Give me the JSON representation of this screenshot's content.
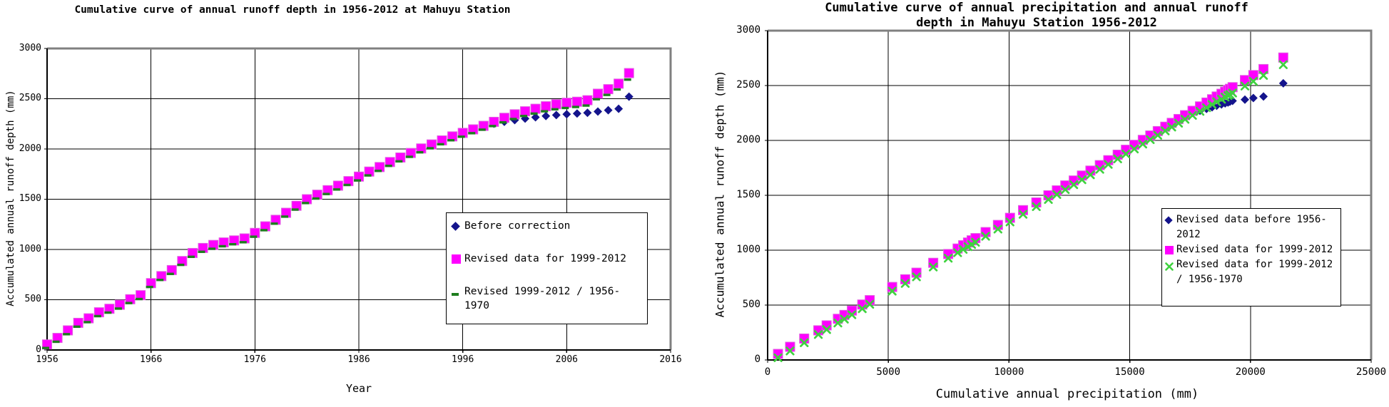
{
  "page": {
    "background": "#ffffff",
    "grid_color": "#000000",
    "frame_gray": "#808080"
  },
  "chart_data": [
    {
      "type": "scatter",
      "title": "Cumulative curve of annual runoff depth in 1956-2012 at Mahuyu Station",
      "xlabel": "Year",
      "ylabel": "Accumulated annual runoff depth (mm)",
      "xlim": [
        1956,
        2016
      ],
      "ylim": [
        0,
        3000
      ],
      "xticks": [
        1956,
        1966,
        1976,
        1986,
        1996,
        2006,
        2016
      ],
      "yticks": [
        0,
        500,
        1000,
        1500,
        2000,
        2500,
        3000
      ],
      "grid": true,
      "legend_position": "inside-right",
      "x": [
        1956,
        1957,
        1958,
        1959,
        1960,
        1961,
        1962,
        1963,
        1964,
        1965,
        1966,
        1967,
        1968,
        1969,
        1970,
        1971,
        1972,
        1973,
        1974,
        1975,
        1976,
        1977,
        1978,
        1979,
        1980,
        1981,
        1982,
        1983,
        1984,
        1985,
        1986,
        1987,
        1988,
        1989,
        1990,
        1991,
        1992,
        1993,
        1994,
        1995,
        1996,
        1997,
        1998,
        1999,
        2000,
        2001,
        2002,
        2003,
        2004,
        2005,
        2006,
        2007,
        2008,
        2009,
        2010,
        2011,
        2012
      ],
      "series": [
        {
          "name": "Before correction",
          "marker": "diamond",
          "color": "#14148C",
          "values": [
            55,
            120,
            195,
            270,
            315,
            375,
            410,
            450,
            505,
            545,
            665,
            735,
            795,
            885,
            965,
            1015,
            1045,
            1070,
            1090,
            1110,
            1165,
            1230,
            1295,
            1365,
            1435,
            1500,
            1545,
            1590,
            1635,
            1680,
            1725,
            1775,
            1820,
            1870,
            1915,
            1960,
            2005,
            2045,
            2085,
            2125,
            2160,
            2195,
            2230,
            2252,
            2270,
            2287,
            2302,
            2316,
            2328,
            2338,
            2346,
            2353,
            2360,
            2372,
            2386,
            2400,
            2520
          ]
        },
        {
          "name": "Revised data for 1999-2012",
          "marker": "square",
          "color": "#FF00FF",
          "values": [
            55,
            120,
            195,
            270,
            315,
            375,
            410,
            450,
            505,
            545,
            665,
            735,
            795,
            885,
            965,
            1015,
            1045,
            1070,
            1090,
            1110,
            1165,
            1230,
            1295,
            1365,
            1435,
            1500,
            1545,
            1590,
            1635,
            1680,
            1725,
            1775,
            1820,
            1870,
            1915,
            1960,
            2005,
            2045,
            2085,
            2125,
            2160,
            2195,
            2230,
            2270,
            2310,
            2345,
            2375,
            2400,
            2425,
            2445,
            2460,
            2470,
            2485,
            2550,
            2595,
            2650,
            2755
          ]
        },
        {
          "name": "Revised 1999-2012 / 1956-1970",
          "marker": "dash",
          "color": "#1E7D1E",
          "values": [
            20,
            82,
            157,
            232,
            277,
            337,
            372,
            412,
            467,
            507,
            627,
            697,
            757,
            847,
            927,
            977,
            1007,
            1032,
            1052,
            1072,
            1127,
            1192,
            1257,
            1327,
            1397,
            1462,
            1507,
            1552,
            1597,
            1642,
            1687,
            1737,
            1782,
            1832,
            1877,
            1922,
            1967,
            2007,
            2047,
            2087,
            2122,
            2157,
            2192,
            2228,
            2265,
            2298,
            2328,
            2352,
            2375,
            2395,
            2408,
            2418,
            2432,
            2495,
            2538,
            2592,
            2690
          ]
        }
      ]
    },
    {
      "type": "scatter",
      "title": "Cumulative curve of annual precipitation and annual runoff depth in Mahuyu Station 1956-2012",
      "xlabel": "Cumulative annual precipitation (mm)",
      "ylabel": "Accumulated annual runoff depth (mm)",
      "xlim": [
        0,
        25000
      ],
      "ylim": [
        0,
        3000
      ],
      "xticks": [
        0,
        5000,
        10000,
        15000,
        20000,
        25000
      ],
      "yticks": [
        0,
        500,
        1000,
        1500,
        2000,
        2500,
        3000
      ],
      "grid": true,
      "legend_position": "inside-right",
      "x": [
        430,
        930,
        1515,
        2100,
        2445,
        2910,
        3180,
        3490,
        3920,
        4230,
        5160,
        5700,
        6165,
        6860,
        7480,
        7870,
        8100,
        8300,
        8450,
        8610,
        9030,
        9540,
        10040,
        10580,
        11130,
        11630,
        11980,
        12330,
        12680,
        13020,
        13370,
        13760,
        14110,
        14500,
        14840,
        15190,
        15540,
        15850,
        16160,
        16470,
        16740,
        17020,
        17290,
        17600,
        17910,
        18180,
        18410,
        18600,
        18800,
        18950,
        19070,
        19150,
        19260,
        19770,
        20120,
        20540,
        21360
      ],
      "series": [
        {
          "name": "Revised data before 1956-2012",
          "marker": "diamond",
          "color": "#14148C",
          "values": [
            55,
            120,
            195,
            270,
            315,
            375,
            410,
            450,
            505,
            545,
            665,
            735,
            795,
            885,
            965,
            1015,
            1045,
            1070,
            1090,
            1110,
            1165,
            1230,
            1295,
            1365,
            1435,
            1500,
            1545,
            1590,
            1635,
            1680,
            1725,
            1775,
            1820,
            1870,
            1915,
            1960,
            2005,
            2045,
            2085,
            2125,
            2160,
            2195,
            2230,
            2252,
            2270,
            2287,
            2302,
            2316,
            2328,
            2338,
            2346,
            2353,
            2360,
            2372,
            2386,
            2400,
            2520
          ]
        },
        {
          "name": "Revised data for 1999-2012",
          "marker": "square",
          "color": "#FF00FF",
          "values": [
            55,
            120,
            195,
            270,
            315,
            375,
            410,
            450,
            505,
            545,
            665,
            735,
            795,
            885,
            965,
            1015,
            1045,
            1070,
            1090,
            1110,
            1165,
            1230,
            1295,
            1365,
            1435,
            1500,
            1545,
            1590,
            1635,
            1680,
            1725,
            1775,
            1820,
            1870,
            1915,
            1960,
            2005,
            2045,
            2085,
            2125,
            2160,
            2195,
            2230,
            2270,
            2310,
            2345,
            2375,
            2400,
            2425,
            2445,
            2460,
            2470,
            2485,
            2550,
            2595,
            2650,
            2755
          ]
        },
        {
          "name": "Revised data for 1999-2012 / 1956-1970",
          "marker": "xmark",
          "color": "#3FD23F",
          "values": [
            20,
            82,
            157,
            232,
            277,
            337,
            372,
            412,
            467,
            507,
            627,
            697,
            757,
            847,
            927,
            977,
            1007,
            1032,
            1052,
            1072,
            1127,
            1192,
            1257,
            1327,
            1397,
            1462,
            1507,
            1552,
            1597,
            1642,
            1687,
            1737,
            1782,
            1832,
            1877,
            1922,
            1967,
            2007,
            2047,
            2087,
            2122,
            2157,
            2192,
            2228,
            2265,
            2298,
            2328,
            2352,
            2375,
            2395,
            2408,
            2418,
            2432,
            2495,
            2538,
            2592,
            2690
          ]
        }
      ]
    }
  ]
}
